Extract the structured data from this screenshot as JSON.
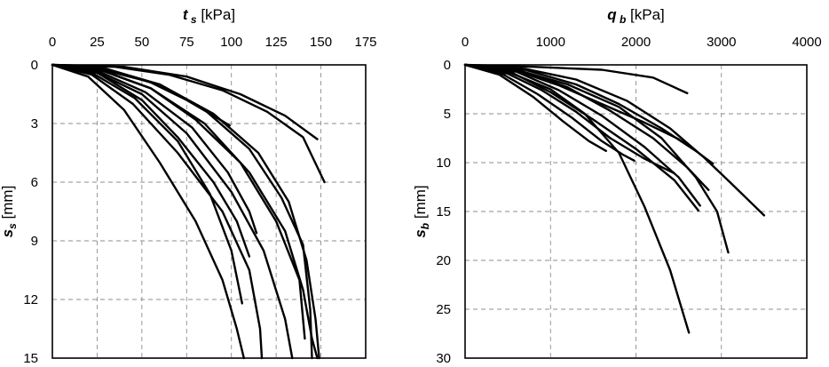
{
  "chart_data": [
    {
      "type": "line",
      "x_axis": {
        "symbol": "t",
        "subscript": "s",
        "unit": " [kPa]",
        "min": 0,
        "max": 175,
        "ticks": [
          0,
          25,
          50,
          75,
          100,
          125,
          150,
          175
        ],
        "position": "top"
      },
      "y_axis": {
        "symbol": "s",
        "subscript": "s",
        "unit": " [mm]",
        "min": 0,
        "max": 15,
        "ticks": [
          0,
          3,
          6,
          9,
          12,
          15
        ],
        "inverted": true
      },
      "grid": true,
      "series": [
        {
          "points": [
            [
              0,
              0
            ],
            [
              40,
              0.1
            ],
            [
              75,
              0.6
            ],
            [
              105,
              1.5
            ],
            [
              130,
              2.6
            ],
            [
              148,
              3.8
            ]
          ]
        },
        {
          "points": [
            [
              0,
              0
            ],
            [
              35,
              0.1
            ],
            [
              65,
              0.5
            ],
            [
              95,
              1.3
            ],
            [
              120,
              2.4
            ],
            [
              140,
              3.7
            ],
            [
              152,
              6.0
            ]
          ]
        },
        {
          "points": [
            [
              0,
              0
            ],
            [
              30,
              0.2
            ],
            [
              55,
              0.9
            ],
            [
              75,
              1.8
            ],
            [
              90,
              2.6
            ],
            [
              99,
              3.1
            ]
          ]
        },
        {
          "points": [
            [
              0,
              0
            ],
            [
              30,
              0.3
            ],
            [
              60,
              1.0
            ],
            [
              90,
              2.5
            ],
            [
              115,
              4.5
            ],
            [
              132,
              7.0
            ],
            [
              142,
              10.0
            ],
            [
              147,
              13.0
            ],
            [
              149,
              15.0
            ]
          ]
        },
        {
          "points": [
            [
              0,
              0
            ],
            [
              28,
              0.3
            ],
            [
              55,
              1.2
            ],
            [
              85,
              3.0
            ],
            [
              110,
              5.5
            ],
            [
              130,
              8.5
            ],
            [
              140,
              11.5
            ],
            [
              145,
              14.0
            ],
            [
              148,
              15.0
            ]
          ]
        },
        {
          "points": [
            [
              0,
              0
            ],
            [
              25,
              0.4
            ],
            [
              50,
              1.5
            ],
            [
              75,
              3.5
            ],
            [
              100,
              6.5
            ],
            [
              118,
              9.5
            ],
            [
              130,
              13.0
            ],
            [
              134,
              15.0
            ]
          ]
        },
        {
          "points": [
            [
              0,
              0
            ],
            [
              22,
              0.5
            ],
            [
              45,
              2.0
            ],
            [
              70,
              4.5
            ],
            [
              95,
              7.5
            ],
            [
              110,
              10.5
            ],
            [
              116,
              13.5
            ],
            [
              117,
              15.0
            ]
          ]
        },
        {
          "points": [
            [
              0,
              0
            ],
            [
              20,
              0.6
            ],
            [
              40,
              2.3
            ],
            [
              60,
              5.0
            ],
            [
              80,
              8.0
            ],
            [
              95,
              11.0
            ],
            [
              103,
              13.5
            ],
            [
              107,
              15.0
            ]
          ]
        },
        {
          "points": [
            [
              0,
              0
            ],
            [
              25,
              0.4
            ],
            [
              50,
              1.8
            ],
            [
              70,
              3.7
            ],
            [
              90,
              6.0
            ],
            [
              103,
              8.0
            ],
            [
              110,
              9.8
            ]
          ]
        },
        {
          "points": [
            [
              0,
              0
            ],
            [
              25,
              0.3
            ],
            [
              52,
              1.4
            ],
            [
              78,
              3.2
            ],
            [
              98,
              5.5
            ],
            [
              110,
              7.5
            ],
            [
              114,
              8.6
            ]
          ]
        },
        {
          "points": [
            [
              0,
              0
            ],
            [
              28,
              0.3
            ],
            [
              55,
              1.2
            ],
            [
              80,
              2.8
            ],
            [
              105,
              5.0
            ],
            [
              125,
              8.0
            ],
            [
              138,
              11.0
            ],
            [
              141,
              14.0
            ]
          ]
        },
        {
          "points": [
            [
              0,
              0
            ],
            [
              30,
              0.2
            ],
            [
              60,
              1.0
            ],
            [
              85,
              2.3
            ],
            [
              110,
              4.3
            ],
            [
              128,
              6.8
            ],
            [
              140,
              9.2
            ],
            [
              144,
              12.5
            ],
            [
              145,
              15.0
            ]
          ]
        },
        {
          "points": [
            [
              0,
              0
            ],
            [
              22,
              0.4
            ],
            [
              46,
              1.7
            ],
            [
              70,
              3.9
            ],
            [
              88,
              6.6
            ],
            [
              100,
              9.5
            ],
            [
              106,
              12.2
            ]
          ]
        }
      ]
    },
    {
      "type": "line",
      "x_axis": {
        "symbol": "q",
        "subscript": "b",
        "unit": " [kPa]",
        "min": 0,
        "max": 4000,
        "ticks": [
          0,
          1000,
          2000,
          3000,
          4000
        ],
        "position": "top"
      },
      "y_axis": {
        "symbol": "s",
        "subscript": "b",
        "unit": " [mm]",
        "min": 0,
        "max": 30,
        "ticks": [
          0,
          5,
          10,
          15,
          20,
          25,
          30
        ],
        "inverted": true
      },
      "grid": true,
      "series": [
        {
          "points": [
            [
              0,
              0
            ],
            [
              800,
              0.2
            ],
            [
              1600,
              0.5
            ],
            [
              2200,
              1.3
            ],
            [
              2600,
              2.9
            ]
          ]
        },
        {
          "points": [
            [
              0,
              0
            ],
            [
              700,
              0.4
            ],
            [
              1300,
              1.5
            ],
            [
              1900,
              3.7
            ],
            [
              2400,
              6.5
            ],
            [
              2800,
              9.5
            ],
            [
              3100,
              12.0
            ],
            [
              3500,
              15.4
            ]
          ]
        },
        {
          "points": [
            [
              0,
              0
            ],
            [
              600,
              0.5
            ],
            [
              1200,
              2.0
            ],
            [
              1800,
              4.3
            ],
            [
              2300,
              7.5
            ],
            [
              2700,
              11.5
            ],
            [
              2950,
              15.0
            ],
            [
              3080,
              19.2
            ]
          ]
        },
        {
          "points": [
            [
              0,
              0
            ],
            [
              500,
              0.7
            ],
            [
              1000,
              2.5
            ],
            [
              1400,
              5.0
            ],
            [
              1800,
              9.0
            ],
            [
              2100,
              14.5
            ],
            [
              2400,
              21.0
            ],
            [
              2620,
              27.4
            ]
          ]
        },
        {
          "points": [
            [
              0,
              0
            ],
            [
              700,
              0.5
            ],
            [
              1300,
              2.0
            ],
            [
              1800,
              4.0
            ],
            [
              2300,
              6.5
            ],
            [
              2700,
              8.8
            ],
            [
              2900,
              10.1
            ]
          ]
        },
        {
          "points": [
            [
              0,
              0
            ],
            [
              650,
              0.6
            ],
            [
              1200,
              2.3
            ],
            [
              1700,
              4.7
            ],
            [
              2200,
              7.5
            ],
            [
              2600,
              10.5
            ],
            [
              2850,
              12.8
            ]
          ]
        },
        {
          "points": [
            [
              0,
              0
            ],
            [
              600,
              0.7
            ],
            [
              1100,
              2.6
            ],
            [
              1600,
              5.2
            ],
            [
              2100,
              8.4
            ],
            [
              2500,
              11.5
            ],
            [
              2750,
              14.4
            ]
          ]
        },
        {
          "points": [
            [
              0,
              0
            ],
            [
              550,
              0.8
            ],
            [
              1000,
              2.8
            ],
            [
              1500,
              5.6
            ],
            [
              2000,
              8.6
            ],
            [
              2450,
              11.8
            ],
            [
              2730,
              14.9
            ]
          ]
        },
        {
          "points": [
            [
              0,
              0
            ],
            [
              500,
              0.9
            ],
            [
              900,
              2.6
            ],
            [
              1300,
              4.8
            ],
            [
              1700,
              7.5
            ],
            [
              2100,
              9.6
            ],
            [
              2450,
              11.1
            ]
          ]
        },
        {
          "points": [
            [
              0,
              0
            ],
            [
              450,
              1.0
            ],
            [
              850,
              3.0
            ],
            [
              1250,
              5.4
            ],
            [
              1600,
              7.8
            ],
            [
              1850,
              9.2
            ],
            [
              1980,
              9.8
            ]
          ]
        },
        {
          "points": [
            [
              0,
              0
            ],
            [
              400,
              1.0
            ],
            [
              800,
              3.3
            ],
            [
              1150,
              5.8
            ],
            [
              1450,
              7.8
            ],
            [
              1650,
              8.8
            ]
          ]
        },
        {
          "points": [
            [
              0,
              0
            ],
            [
              600,
              0.6
            ],
            [
              1100,
              2.1
            ],
            [
              1600,
              4.0
            ],
            [
              2100,
              5.9
            ],
            [
              2500,
              7.6
            ],
            [
              2700,
              8.8
            ]
          ]
        }
      ]
    }
  ]
}
